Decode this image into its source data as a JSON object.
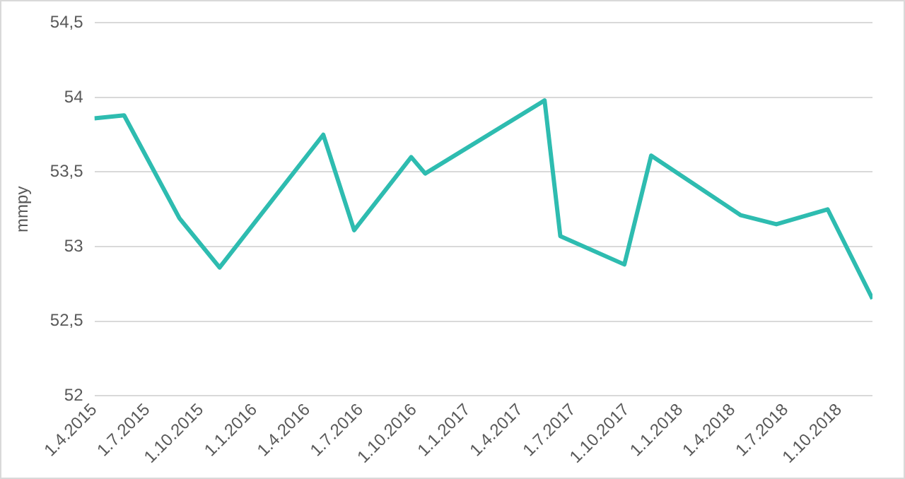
{
  "chart_data": {
    "type": "line",
    "ylabel": "mmpy",
    "x": [
      "2015-04-01",
      "2015-05-22",
      "2015-08-25",
      "2015-11-02",
      "2016-04-28",
      "2016-06-20",
      "2016-09-26",
      "2016-10-20",
      "2017-05-13",
      "2017-06-09",
      "2017-09-27",
      "2017-11-12",
      "2018-04-15",
      "2018-06-15",
      "2018-09-11",
      "2018-11-27"
    ],
    "series": [
      {
        "color": "#2ebcb0",
        "values": [
          53.86,
          53.88,
          53.19,
          52.86,
          53.75,
          53.11,
          53.6,
          53.49,
          53.98,
          53.07,
          52.88,
          53.61,
          53.21,
          53.15,
          53.25,
          52.65
        ]
      }
    ],
    "xlim": [
      "2015-04-01",
      "2018-11-27"
    ],
    "xticks": [
      {
        "value": "2015-04-01",
        "label": "1.4.2015"
      },
      {
        "value": "2015-07-01",
        "label": "1.7.2015"
      },
      {
        "value": "2015-10-01",
        "label": "1.10.2015"
      },
      {
        "value": "2016-01-01",
        "label": "1.1.2016"
      },
      {
        "value": "2016-04-01",
        "label": "1.4.2016"
      },
      {
        "value": "2016-07-01",
        "label": "1.7.2016"
      },
      {
        "value": "2016-10-01",
        "label": "1.10.2016"
      },
      {
        "value": "2017-01-01",
        "label": "1.1.2017"
      },
      {
        "value": "2017-04-01",
        "label": "1.4.2017"
      },
      {
        "value": "2017-07-01",
        "label": "1.7.2017"
      },
      {
        "value": "2017-10-01",
        "label": "1.10.2017"
      },
      {
        "value": "2018-01-01",
        "label": "1.1.2018"
      },
      {
        "value": "2018-04-01",
        "label": "1.4.2018"
      },
      {
        "value": "2018-07-01",
        "label": "1.7.2018"
      },
      {
        "value": "2018-10-01",
        "label": "1.10.2018"
      }
    ],
    "ylim": [
      52,
      54.5
    ],
    "yticks": [
      52,
      {
        "value": 52.5,
        "label": "52,5"
      },
      53,
      {
        "value": 53.5,
        "label": "53,5"
      },
      54,
      {
        "value": 54.5,
        "label": "54,5"
      }
    ],
    "grid": "y",
    "legend": false,
    "marker": "none",
    "line_style": "solid"
  }
}
